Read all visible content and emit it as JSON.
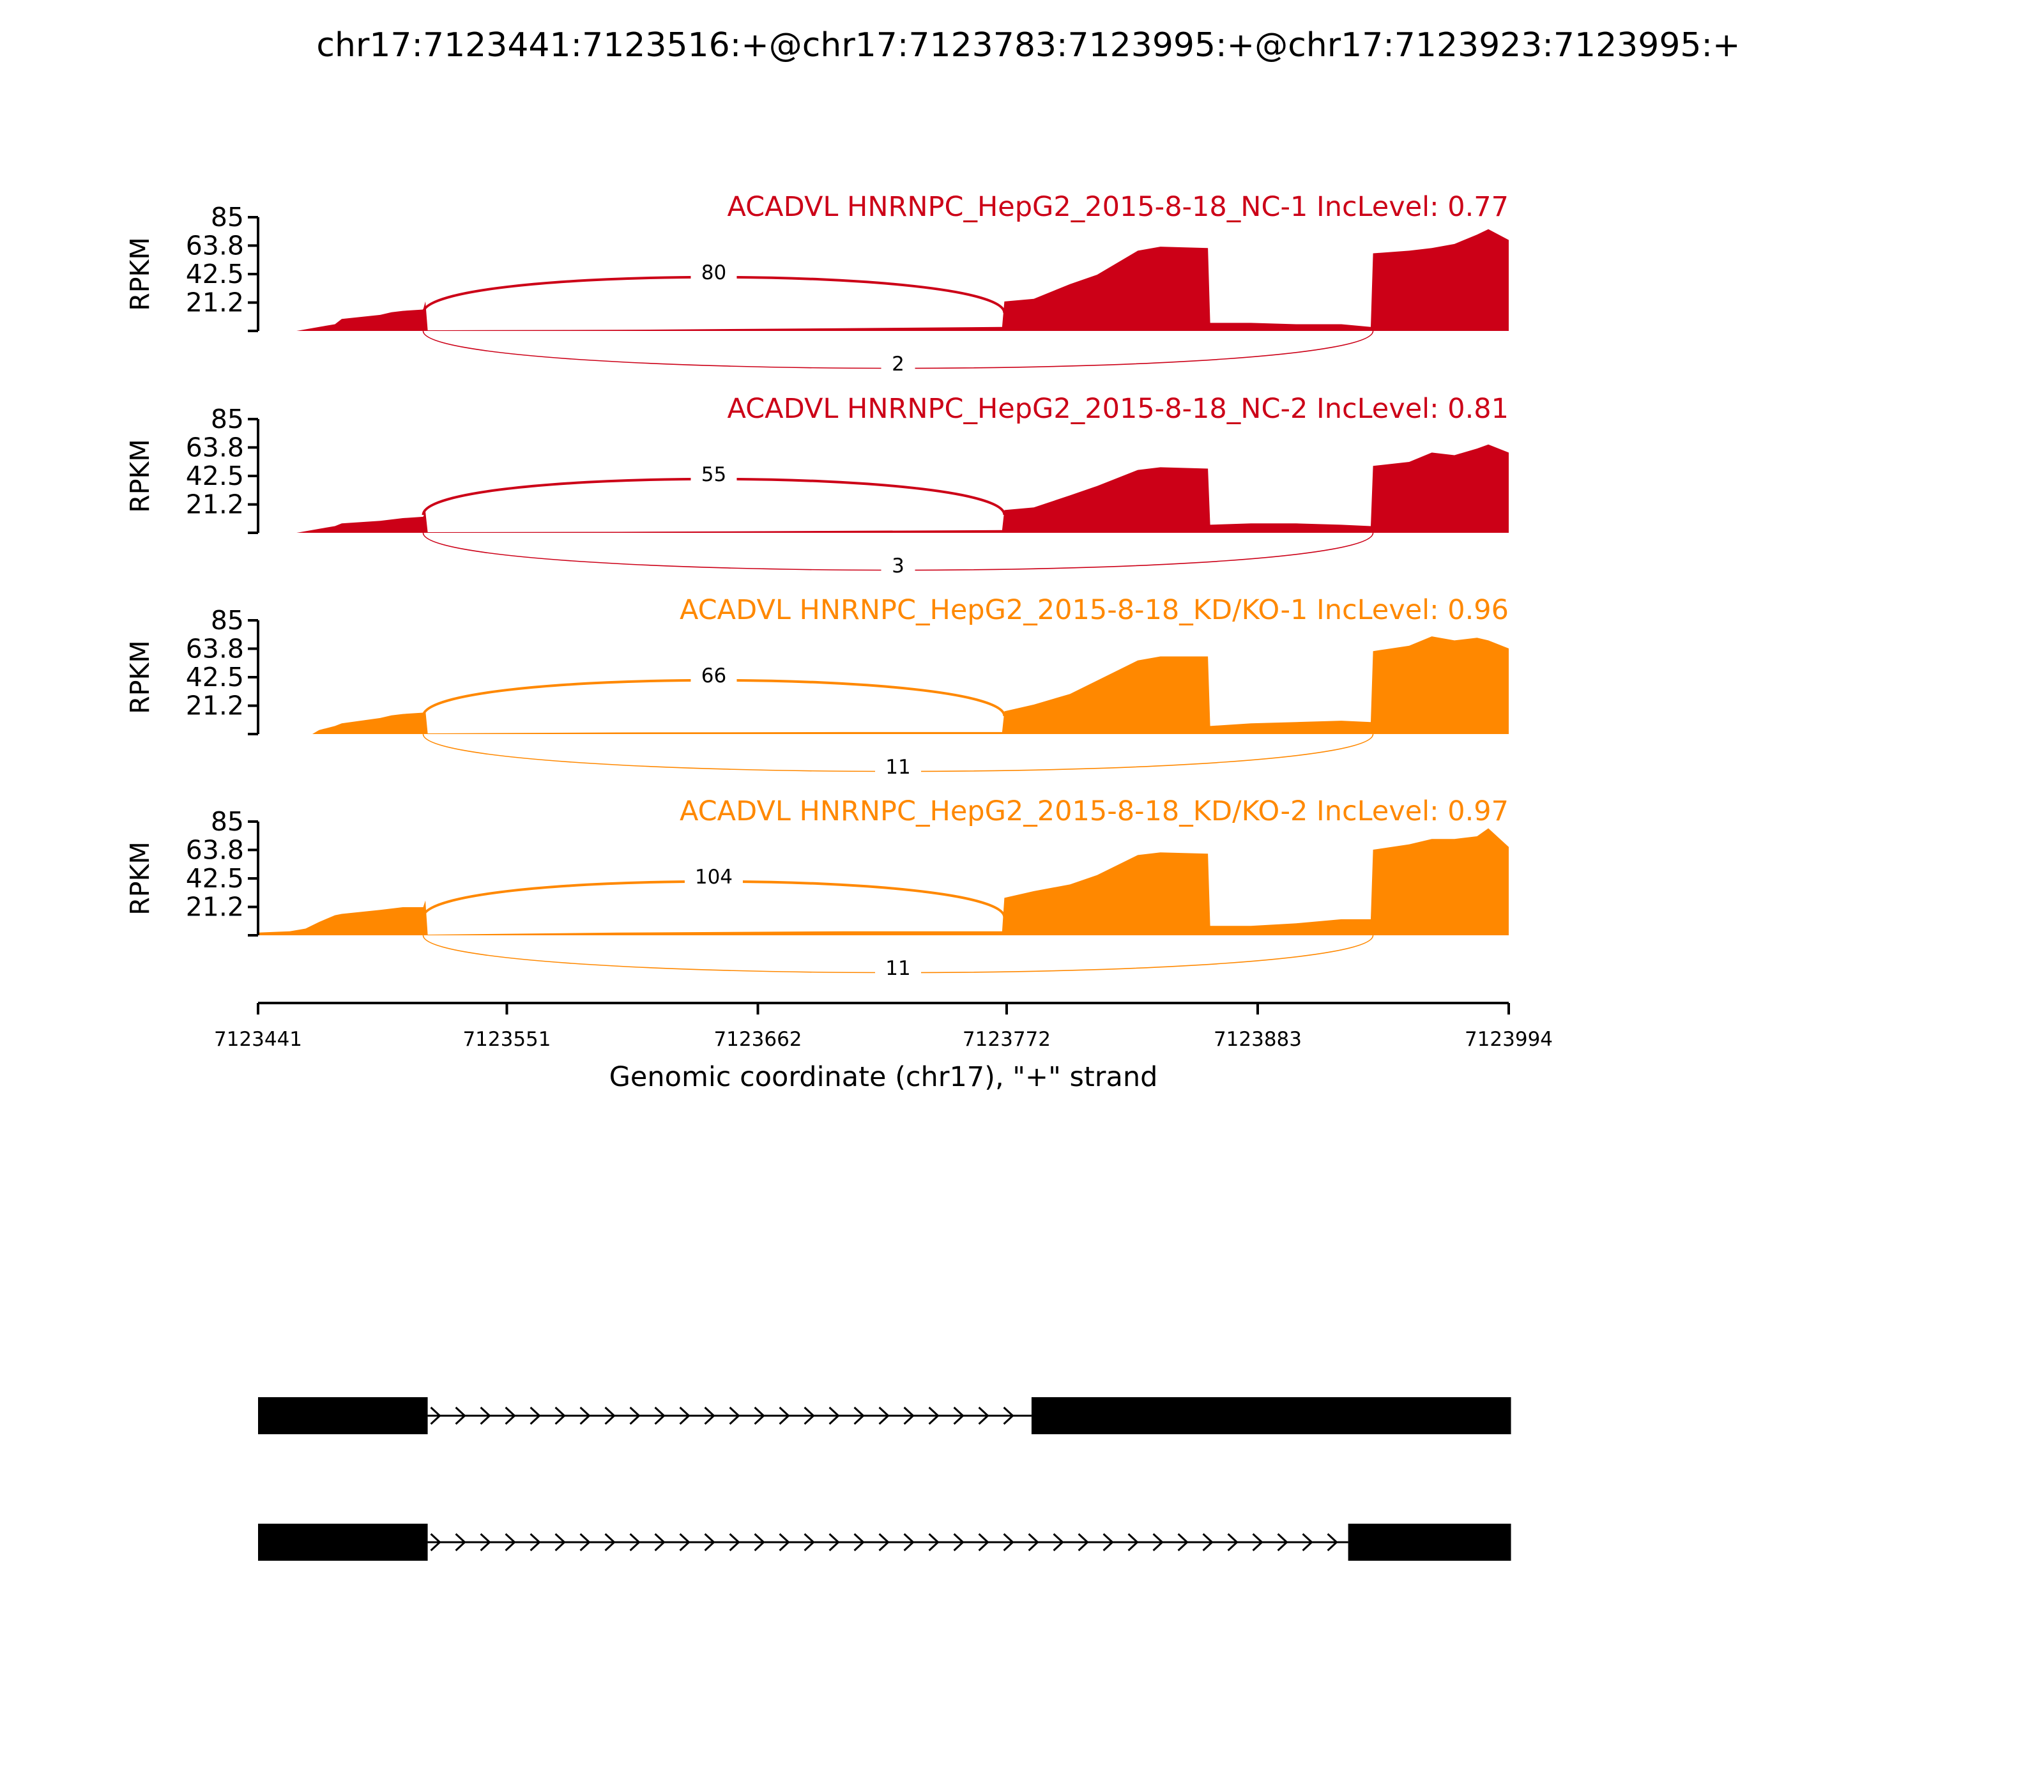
{
  "title": "chr17:7123441:7123516:+@chr17:7123783:7123995:+@chr17:7123923:7123995:+",
  "colors": {
    "nc": "#cc0017",
    "kd": "#ff8800",
    "axis": "#000000",
    "model": "#000000"
  },
  "chart_data": {
    "type": "area",
    "title": "chr17:7123441:7123516:+@chr17:7123783:7123995:+@chr17:7123923:7123995:+",
    "xlabel": "Genomic coordinate (chr17), \"+\" strand",
    "ylabel": "RPKM",
    "xlim": [
      7123441,
      7123994
    ],
    "ylim": [
      0,
      85
    ],
    "x_ticks": [
      "7123441",
      "7123551",
      "7123662",
      "7123772",
      "7123883",
      "7123994"
    ],
    "x_tick_values": [
      7123441,
      7123551,
      7123662,
      7123772,
      7123883,
      7123994
    ],
    "y_ticks": [
      "85",
      "63.8",
      "42.5",
      "21.2"
    ],
    "y_tick_values": [
      85,
      63.8,
      42.5,
      21.2
    ],
    "series": [
      {
        "name": "ACADVL HNRNPC_HepG2_2015-8-18_NC-1 IncLevel: 0.77",
        "color_key": "nc",
        "profile": [
          [
            7123441,
            0
          ],
          [
            7123458,
            0
          ],
          [
            7123468,
            3
          ],
          [
            7123475,
            5
          ],
          [
            7123478,
            9
          ],
          [
            7123495,
            12
          ],
          [
            7123500,
            14
          ],
          [
            7123505,
            15
          ],
          [
            7123514,
            16
          ],
          [
            7123515,
            22
          ],
          [
            7123516,
            0.5
          ],
          [
            7123600,
            0.8
          ],
          [
            7123700,
            2
          ],
          [
            7123770,
            3
          ],
          [
            7123771,
            22
          ],
          [
            7123784,
            24
          ],
          [
            7123800,
            35
          ],
          [
            7123812,
            42
          ],
          [
            7123830,
            60
          ],
          [
            7123840,
            63
          ],
          [
            7123861,
            62
          ],
          [
            7123862,
            6
          ],
          [
            7123880,
            6
          ],
          [
            7123900,
            5
          ],
          [
            7123920,
            5
          ],
          [
            7123933,
            3
          ],
          [
            7123934,
            58
          ],
          [
            7123950,
            60
          ],
          [
            7123960,
            62
          ],
          [
            7123970,
            65
          ],
          [
            7123980,
            72
          ],
          [
            7123985,
            76
          ],
          [
            7123994,
            68
          ]
        ],
        "junctions": [
          {
            "from": 7123514,
            "to": 7123771,
            "count": "80",
            "side": "above"
          },
          {
            "from": 7123514,
            "to": 7123934,
            "count": "2",
            "side": "below"
          }
        ]
      },
      {
        "name": "ACADVL HNRNPC_HepG2_2015-8-18_NC-2 IncLevel: 0.81",
        "color_key": "nc",
        "profile": [
          [
            7123441,
            0
          ],
          [
            7123458,
            0
          ],
          [
            7123468,
            3
          ],
          [
            7123475,
            5
          ],
          [
            7123478,
            7
          ],
          [
            7123495,
            9
          ],
          [
            7123500,
            10
          ],
          [
            7123505,
            11
          ],
          [
            7123514,
            12
          ],
          [
            7123515,
            16
          ],
          [
            7123516,
            0.5
          ],
          [
            7123600,
            0.7
          ],
          [
            7123700,
            1.5
          ],
          [
            7123770,
            2
          ],
          [
            7123771,
            17
          ],
          [
            7123784,
            19
          ],
          [
            7123800,
            28
          ],
          [
            7123812,
            35
          ],
          [
            7123830,
            47
          ],
          [
            7123840,
            49
          ],
          [
            7123861,
            48
          ],
          [
            7123862,
            6
          ],
          [
            7123880,
            7
          ],
          [
            7123900,
            7
          ],
          [
            7123920,
            6
          ],
          [
            7123933,
            5
          ],
          [
            7123934,
            50
          ],
          [
            7123950,
            53
          ],
          [
            7123960,
            60
          ],
          [
            7123970,
            58
          ],
          [
            7123980,
            63
          ],
          [
            7123985,
            66
          ],
          [
            7123994,
            60
          ]
        ],
        "junctions": [
          {
            "from": 7123514,
            "to": 7123771,
            "count": "55",
            "side": "above"
          },
          {
            "from": 7123514,
            "to": 7123934,
            "count": "3",
            "side": "below"
          }
        ]
      },
      {
        "name": "ACADVL HNRNPC_HepG2_2015-8-18_KD/KO-1 IncLevel: 0.96",
        "color_key": "kd",
        "profile": [
          [
            7123441,
            0
          ],
          [
            7123465,
            0
          ],
          [
            7123468,
            3
          ],
          [
            7123475,
            6
          ],
          [
            7123478,
            8
          ],
          [
            7123495,
            12
          ],
          [
            7123500,
            14
          ],
          [
            7123505,
            15
          ],
          [
            7123514,
            16
          ],
          [
            7123515,
            18
          ],
          [
            7123516,
            0.5
          ],
          [
            7123600,
            1.2
          ],
          [
            7123700,
            1.5
          ],
          [
            7123770,
            1.5
          ],
          [
            7123771,
            17
          ],
          [
            7123784,
            22
          ],
          [
            7123800,
            30
          ],
          [
            7123812,
            40
          ],
          [
            7123830,
            55
          ],
          [
            7123840,
            58
          ],
          [
            7123861,
            58
          ],
          [
            7123862,
            6
          ],
          [
            7123880,
            8
          ],
          [
            7123900,
            9
          ],
          [
            7123920,
            10
          ],
          [
            7123933,
            9
          ],
          [
            7123934,
            62
          ],
          [
            7123950,
            66
          ],
          [
            7123960,
            73
          ],
          [
            7123970,
            70
          ],
          [
            7123980,
            72
          ],
          [
            7123985,
            70
          ],
          [
            7123994,
            64
          ]
        ],
        "junctions": [
          {
            "from": 7123514,
            "to": 7123771,
            "count": "66",
            "side": "above"
          },
          {
            "from": 7123514,
            "to": 7123934,
            "count": "11",
            "side": "below"
          }
        ]
      },
      {
        "name": "ACADVL HNRNPC_HepG2_2015-8-18_KD/KO-2 IncLevel: 0.97",
        "color_key": "kd",
        "profile": [
          [
            7123441,
            2
          ],
          [
            7123455,
            3
          ],
          [
            7123462,
            5
          ],
          [
            7123468,
            10
          ],
          [
            7123475,
            15
          ],
          [
            7123478,
            16
          ],
          [
            7123495,
            19
          ],
          [
            7123505,
            21
          ],
          [
            7123514,
            21
          ],
          [
            7123515,
            26
          ],
          [
            7123516,
            0.5
          ],
          [
            7123600,
            2
          ],
          [
            7123700,
            3
          ],
          [
            7123770,
            3
          ],
          [
            7123771,
            28
          ],
          [
            7123784,
            33
          ],
          [
            7123800,
            38
          ],
          [
            7123812,
            45
          ],
          [
            7123830,
            60
          ],
          [
            7123840,
            62
          ],
          [
            7123861,
            61
          ],
          [
            7123862,
            7
          ],
          [
            7123880,
            7
          ],
          [
            7123900,
            9
          ],
          [
            7123920,
            12
          ],
          [
            7123933,
            12
          ],
          [
            7123934,
            64
          ],
          [
            7123950,
            68
          ],
          [
            7123960,
            72
          ],
          [
            7123970,
            72
          ],
          [
            7123980,
            74
          ],
          [
            7123985,
            80
          ],
          [
            7123994,
            66
          ]
        ],
        "junctions": [
          {
            "from": 7123514,
            "to": 7123771,
            "count": "104",
            "side": "above"
          },
          {
            "from": 7123514,
            "to": 7123934,
            "count": "11",
            "side": "below"
          }
        ]
      }
    ]
  },
  "gene_models": [
    {
      "exons": [
        [
          7123441,
          7123516
        ],
        [
          7123783,
          7123995
        ]
      ]
    },
    {
      "exons": [
        [
          7123441,
          7123516
        ],
        [
          7123923,
          7123995
        ]
      ]
    }
  ]
}
